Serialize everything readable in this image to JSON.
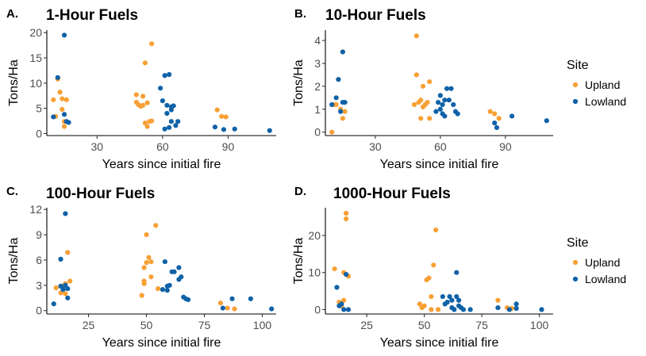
{
  "legend": {
    "title": "Site",
    "entries": [
      {
        "label": "Upland",
        "color": "#F7A035"
      },
      {
        "label": "Lowland",
        "color": "#0F62A8"
      }
    ]
  },
  "chart_data": [
    {
      "type": "scatter",
      "panel": "A.",
      "title": "1-Hour Fuels",
      "xlabel": "Years since initial fire",
      "ylabel": "Tons/Ha",
      "xlim": [
        7,
        112
      ],
      "ylim": [
        -0.4,
        20.5
      ],
      "xticks": [
        30,
        60,
        90
      ],
      "yticks": [
        0,
        5,
        10,
        15,
        20
      ],
      "grid": false,
      "series": [
        {
          "name": "Upland",
          "color": "#F7A035",
          "points": [
            [
              10,
              6.7
            ],
            [
              11,
              3.4
            ],
            [
              12,
              10.8
            ],
            [
              13,
              8.2
            ],
            [
              14,
              6.9
            ],
            [
              14,
              4.8
            ],
            [
              15,
              2.4
            ],
            [
              15,
              1.4
            ],
            [
              16,
              6.7
            ],
            [
              48,
              7.7
            ],
            [
              48,
              6.2
            ],
            [
              49,
              5.7
            ],
            [
              50,
              5.4
            ],
            [
              51,
              7.4
            ],
            [
              51,
              5.6
            ],
            [
              52,
              14.0
            ],
            [
              52,
              2.1
            ],
            [
              53,
              1.4
            ],
            [
              53,
              6.1
            ],
            [
              54,
              2.4
            ],
            [
              55,
              17.8
            ],
            [
              55,
              2.5
            ],
            [
              85,
              4.7
            ],
            [
              87,
              3.4
            ],
            [
              89,
              3.3
            ]
          ]
        },
        {
          "name": "Lowland",
          "color": "#0F62A8",
          "points": [
            [
              10,
              3.3
            ],
            [
              12,
              11.1
            ],
            [
              15,
              19.5
            ],
            [
              15,
              3.8
            ],
            [
              16,
              2.4
            ],
            [
              17,
              2.2
            ],
            [
              59,
              9.0
            ],
            [
              60,
              6.5
            ],
            [
              61,
              11.5
            ],
            [
              61,
              0.9
            ],
            [
              62,
              4.0
            ],
            [
              62,
              5.6
            ],
            [
              63,
              1.2
            ],
            [
              63,
              11.7
            ],
            [
              64,
              5.3
            ],
            [
              64,
              2.4
            ],
            [
              64,
              4.7
            ],
            [
              65,
              5.5
            ],
            [
              66,
              1.6
            ],
            [
              67,
              2.4
            ],
            [
              84,
              1.3
            ],
            [
              88,
              0.8
            ],
            [
              93,
              0.9
            ],
            [
              109,
              0.6
            ]
          ]
        }
      ]
    },
    {
      "type": "scatter",
      "panel": "B.",
      "title": "10-Hour Fuels",
      "xlabel": "Years since initial fire",
      "ylabel": "Tons/Ha",
      "xlim": [
        7,
        112
      ],
      "ylim": [
        -0.15,
        4.45
      ],
      "xticks": [
        30,
        60,
        90
      ],
      "yticks": [
        0,
        1,
        2,
        3,
        4
      ],
      "grid": false,
      "series": [
        {
          "name": "Upland",
          "color": "#F7A035",
          "points": [
            [
              10,
              0.0
            ],
            [
              11,
              1.2
            ],
            [
              12,
              1.2
            ],
            [
              13,
              2.3
            ],
            [
              14,
              1.0
            ],
            [
              15,
              0.6
            ],
            [
              15,
              3.5
            ],
            [
              16,
              0.9
            ],
            [
              48,
              1.2
            ],
            [
              49,
              4.2
            ],
            [
              49,
              2.5
            ],
            [
              50,
              1.3
            ],
            [
              51,
              1.4
            ],
            [
              51,
              0.6
            ],
            [
              52,
              2.0
            ],
            [
              52,
              1.1
            ],
            [
              53,
              1.2
            ],
            [
              54,
              1.3
            ],
            [
              55,
              0.6
            ],
            [
              55,
              2.2
            ],
            [
              83,
              0.9
            ],
            [
              85,
              0.8
            ],
            [
              87,
              0.6
            ]
          ]
        },
        {
          "name": "Lowland",
          "color": "#0F62A8",
          "points": [
            [
              10,
              1.2
            ],
            [
              12,
              1.5
            ],
            [
              13,
              2.3
            ],
            [
              14,
              0.9
            ],
            [
              15,
              3.5
            ],
            [
              15,
              1.3
            ],
            [
              16,
              1.3
            ],
            [
              58,
              0.9
            ],
            [
              59,
              1.3
            ],
            [
              60,
              1.0
            ],
            [
              60,
              1.6
            ],
            [
              61,
              0.8
            ],
            [
              61,
              1.2
            ],
            [
              62,
              0.7
            ],
            [
              62,
              1.4
            ],
            [
              63,
              1.9
            ],
            [
              64,
              1.4
            ],
            [
              65,
              1.9
            ],
            [
              66,
              1.2
            ],
            [
              67,
              0.9
            ],
            [
              68,
              0.8
            ],
            [
              85,
              0.4
            ],
            [
              86,
              0.2
            ],
            [
              93,
              0.7
            ],
            [
              109,
              0.5
            ]
          ]
        }
      ]
    },
    {
      "type": "scatter",
      "panel": "C.",
      "title": "100-Hour Fuels",
      "xlabel": "Years since initial fire",
      "ylabel": "Tons/Ha",
      "xlim": [
        7,
        106
      ],
      "ylim": [
        -0.4,
        12.2
      ],
      "xticks": [
        25,
        50,
        75,
        100
      ],
      "yticks": [
        0,
        3,
        6,
        9,
        12
      ],
      "grid": false,
      "series": [
        {
          "name": "Upland",
          "color": "#F7A035",
          "points": [
            [
              11,
              2.7
            ],
            [
              13,
              2.1
            ],
            [
              14,
              2.9
            ],
            [
              15,
              3.2
            ],
            [
              15,
              2.0
            ],
            [
              16,
              6.9
            ],
            [
              17,
              3.5
            ],
            [
              48,
              1.8
            ],
            [
              49,
              3.2
            ],
            [
              49,
              5.1
            ],
            [
              49,
              3.5
            ],
            [
              50,
              5.7
            ],
            [
              50,
              9.0
            ],
            [
              51,
              6.3
            ],
            [
              52,
              4.0
            ],
            [
              52,
              5.8
            ],
            [
              54,
              10.1
            ],
            [
              55,
              2.6
            ],
            [
              82,
              0.9
            ],
            [
              85,
              0.3
            ],
            [
              88,
              0.2
            ]
          ]
        },
        {
          "name": "Lowland",
          "color": "#0F62A8",
          "points": [
            [
              10,
              0.8
            ],
            [
              13,
              2.9
            ],
            [
              13,
              6.1
            ],
            [
              14,
              2.5
            ],
            [
              15,
              11.5
            ],
            [
              15,
              3.0
            ],
            [
              16,
              1.5
            ],
            [
              16,
              2.6
            ],
            [
              57,
              2.5
            ],
            [
              58,
              5.8
            ],
            [
              59,
              2.9
            ],
            [
              59,
              2.4
            ],
            [
              60,
              3.0
            ],
            [
              61,
              4.6
            ],
            [
              62,
              4.6
            ],
            [
              64,
              3.7
            ],
            [
              64,
              5.1
            ],
            [
              65,
              4.0
            ],
            [
              66,
              1.6
            ],
            [
              67,
              1.4
            ],
            [
              68,
              1.3
            ],
            [
              83,
              0.3
            ],
            [
              87,
              1.4
            ],
            [
              95,
              1.4
            ],
            [
              104,
              0.2
            ]
          ]
        }
      ]
    },
    {
      "type": "scatter",
      "panel": "D.",
      "title": "1000-Hour Fuels",
      "xlabel": "Years since initial fire",
      "ylabel": "Tons/Ha",
      "xlim": [
        7,
        106
      ],
      "ylim": [
        -1.2,
        27.5
      ],
      "xticks": [
        25,
        50,
        75,
        100
      ],
      "yticks": [
        0,
        10,
        20
      ],
      "grid": false,
      "series": [
        {
          "name": "Upland",
          "color": "#F7A035",
          "points": [
            [
              11,
              11.0
            ],
            [
              13,
              2.0
            ],
            [
              14,
              1.0
            ],
            [
              15,
              10.0
            ],
            [
              15,
              2.5
            ],
            [
              16,
              26.0
            ],
            [
              16,
              24.5
            ],
            [
              17,
              9.0
            ],
            [
              48,
              1.5
            ],
            [
              49,
              0.5
            ],
            [
              50,
              1.0
            ],
            [
              51,
              8.0
            ],
            [
              52,
              8.5
            ],
            [
              53,
              3.5
            ],
            [
              53,
              0.0
            ],
            [
              54,
              12.0
            ],
            [
              55,
              21.5
            ],
            [
              56,
              0.0
            ],
            [
              82,
              2.5
            ],
            [
              86,
              0.5
            ],
            [
              88,
              0.3
            ]
          ]
        },
        {
          "name": "Lowland",
          "color": "#0F62A8",
          "points": [
            [
              12,
              6.0
            ],
            [
              13,
              1.0
            ],
            [
              14,
              1.5
            ],
            [
              15,
              0.0
            ],
            [
              16,
              9.5
            ],
            [
              17,
              0.0
            ],
            [
              58,
              3.5
            ],
            [
              59,
              1.5
            ],
            [
              60,
              2.0
            ],
            [
              61,
              3.5
            ],
            [
              62,
              0.5
            ],
            [
              62,
              2.5
            ],
            [
              63,
              0.0
            ],
            [
              64,
              10.0
            ],
            [
              64,
              3.5
            ],
            [
              65,
              1.0
            ],
            [
              65,
              2.5
            ],
            [
              66,
              0.5
            ],
            [
              67,
              0.0
            ],
            [
              70,
              0.0
            ],
            [
              82,
              0.5
            ],
            [
              87,
              0.0
            ],
            [
              90,
              1.5
            ],
            [
              90,
              0.3
            ],
            [
              101,
              0.0
            ]
          ]
        }
      ]
    }
  ]
}
